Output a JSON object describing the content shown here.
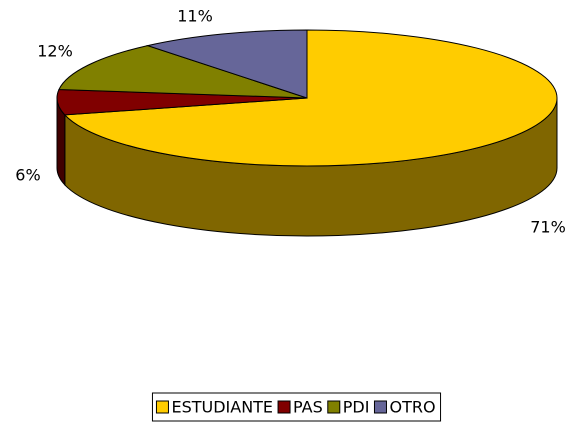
{
  "chart_data": {
    "type": "pie",
    "categories": [
      "ESTUDIANTE",
      "PAS",
      "PDI",
      "OTRO"
    ],
    "values": [
      71,
      6,
      12,
      11
    ],
    "value_labels": [
      "71%",
      "6%",
      "12%",
      "11%"
    ],
    "colors": [
      "#ffcc00",
      "#800000",
      "#808000",
      "#666699"
    ],
    "legend": "bottom"
  }
}
